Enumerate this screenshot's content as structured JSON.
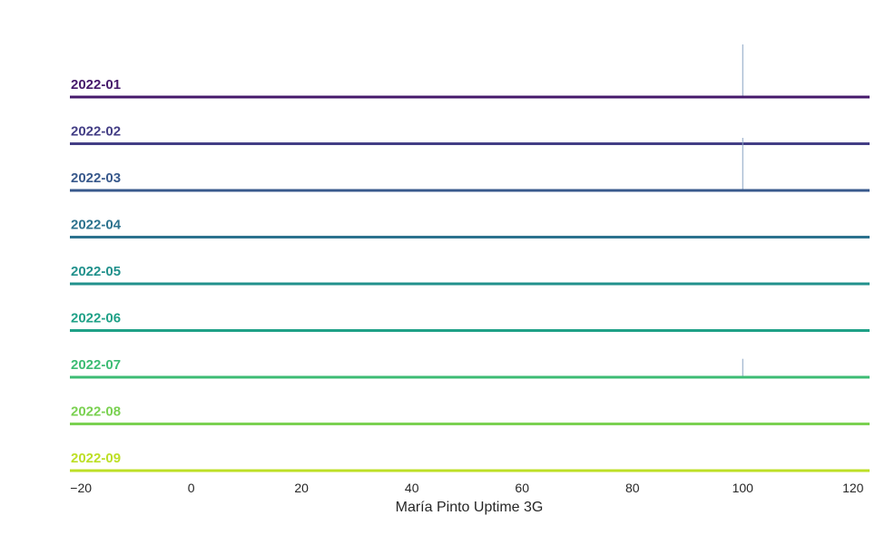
{
  "chart_data": {
    "type": "ridgeline",
    "xlabel": "María Pinto Uptime 3G",
    "xlim": [
      -22,
      123
    ],
    "xticks": [
      -20,
      0,
      20,
      40,
      60,
      80,
      100,
      120
    ],
    "xtick_labels": [
      "−20",
      "0",
      "20",
      "40",
      "60",
      "80",
      "100",
      "120"
    ],
    "grid": false,
    "series": [
      {
        "name": "2022-01",
        "color": "#46196b",
        "spike_x": 100,
        "spike_height": 1.0
      },
      {
        "name": "2022-02",
        "color": "#433e85",
        "spike_x": 100,
        "spike_height": 0.0
      },
      {
        "name": "2022-03",
        "color": "#38598c",
        "spike_x": 100,
        "spike_height": 1.0
      },
      {
        "name": "2022-04",
        "color": "#2c728e",
        "spike_x": 100,
        "spike_height": 0.0
      },
      {
        "name": "2022-05",
        "color": "#21918c",
        "spike_x": 100,
        "spike_height": 0.0
      },
      {
        "name": "2022-06",
        "color": "#1fa187",
        "spike_x": 100,
        "spike_height": 0.0
      },
      {
        "name": "2022-07",
        "color": "#3dbc74",
        "spike_x": 100,
        "spike_height": 0.35
      },
      {
        "name": "2022-08",
        "color": "#7ad151",
        "spike_x": 100,
        "spike_height": 0.0
      },
      {
        "name": "2022-09",
        "color": "#bddf26",
        "spike_x": 100,
        "spike_height": 0.0
      }
    ]
  }
}
